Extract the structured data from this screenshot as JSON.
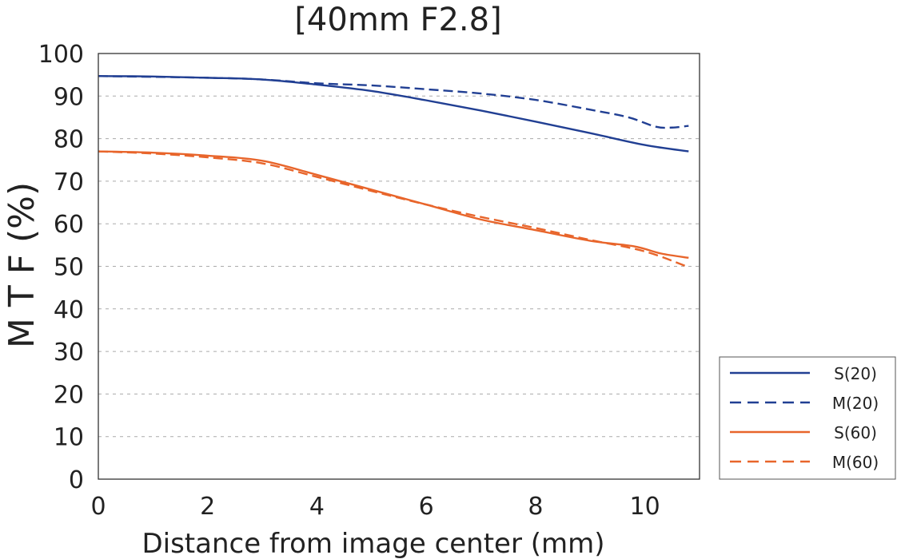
{
  "chart_data": {
    "type": "line",
    "title": "[40mm F2.8]",
    "xlabel": "Distance from image center (mm)",
    "ylabel": "M T F (%)",
    "xlim": [
      0,
      11
    ],
    "ylim": [
      0,
      100
    ],
    "xticks": [
      0,
      2,
      4,
      6,
      8,
      10
    ],
    "yticks": [
      0,
      10,
      20,
      30,
      40,
      50,
      60,
      70,
      80,
      90,
      100
    ],
    "grid": "horizontal dashed",
    "legend_position": "bottom-right outside",
    "series": [
      {
        "name": "S(20)",
        "color": "#213f93",
        "dash": false,
        "x": [
          0,
          1,
          2,
          3,
          4,
          5,
          6,
          7,
          8,
          9,
          10,
          10.8
        ],
        "y": [
          94.7,
          94.6,
          94.3,
          93.9,
          92.7,
          91.2,
          89,
          86.6,
          84,
          81.3,
          78.5,
          77
        ]
      },
      {
        "name": "M(20)",
        "color": "#213f93",
        "dash": true,
        "x": [
          0,
          2,
          3,
          4,
          5,
          6,
          7,
          8,
          9,
          9.7,
          10.2,
          10.5,
          10.8
        ],
        "y": [
          94.7,
          94.3,
          93.9,
          93,
          92.5,
          91.6,
          90.6,
          89.1,
          86.8,
          85,
          82.8,
          82.6,
          83
        ]
      },
      {
        "name": "S(60)",
        "color": "#e8652b",
        "dash": false,
        "x": [
          0,
          1,
          2,
          3,
          4,
          5,
          6,
          7,
          8,
          9,
          9.8,
          10.3,
          10.8
        ],
        "y": [
          77,
          76.7,
          76,
          74.8,
          71.5,
          68,
          64.5,
          61,
          58.5,
          56,
          54.7,
          53,
          52
        ]
      },
      {
        "name": "M(60)",
        "color": "#e8652b",
        "dash": true,
        "x": [
          0,
          1,
          2,
          3,
          4,
          5,
          6,
          7,
          8,
          9,
          10,
          10.8
        ],
        "y": [
          77,
          76.5,
          75.6,
          74.2,
          71,
          67.7,
          64.5,
          61.6,
          59,
          56.2,
          53.5,
          49.8
        ]
      }
    ]
  }
}
